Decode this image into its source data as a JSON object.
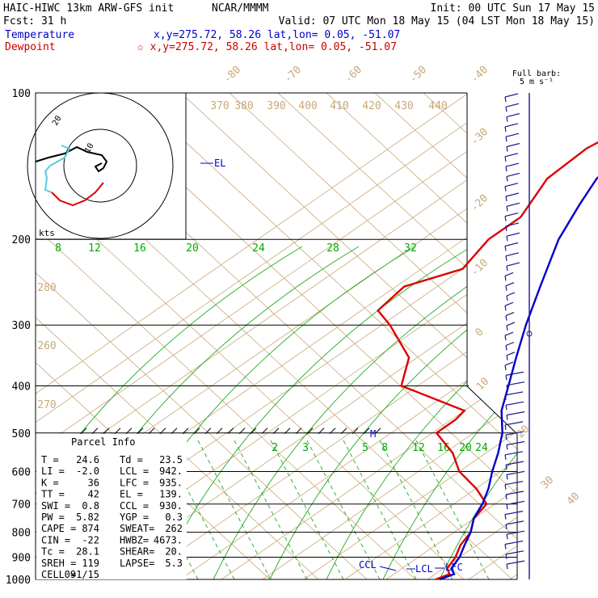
{
  "header": {
    "model": "HAIC-HIWC 13km ARW-GFS init",
    "org": "NCAR/MMMM",
    "init": "Init: 00 UTC Sun 17 May 15",
    "fcst": "Fcst:    31 h",
    "valid": "Valid: 07 UTC Mon 18 May 15 (04 LST Mon 18 May 15)",
    "temperature_label": "Temperature",
    "temperature_cursor": "x,y=275.72, 58.26    lat,lon=  0.05, -51.07",
    "dewpoint_label": "Dewpoint",
    "dewpoint_cursor": "✩ x,y=275.72, 58.26    lat,lon=  0.05, -51.07",
    "barb_legend_1": "Full barb:",
    "barb_legend_2": "5 m s⁻¹"
  },
  "chart_data": {
    "type": "skew-t log-p",
    "pressure_ticks": [
      "100",
      "200",
      "300",
      "400",
      "500",
      "600",
      "700",
      "800",
      "900",
      "1000"
    ],
    "isotherm_labels": [
      "-80",
      "-70",
      "-60",
      "-50",
      "-40",
      "-30",
      "-20",
      "-10",
      "0",
      "10",
      "20",
      "30",
      "40"
    ],
    "theta_labels": [
      "370",
      "380",
      "390",
      "400",
      "410",
      "420",
      "430",
      "440",
      "280",
      "270",
      "260"
    ],
    "mixing_ratio_labels_upper": [
      "8",
      "12",
      "16",
      "20",
      "24",
      "28",
      "32"
    ],
    "mixing_ratio_labels_lower": [
      "2",
      "3",
      "4",
      "5",
      "8",
      "12",
      "16",
      "20",
      "24"
    ],
    "temperature_profile": [
      [
        100,
        -76
      ],
      [
        110,
        -79
      ],
      [
        130,
        -81
      ],
      [
        150,
        -79
      ],
      [
        170,
        -74
      ],
      [
        200,
        -67
      ],
      [
        250,
        -55
      ],
      [
        300,
        -45
      ],
      [
        350,
        -36
      ],
      [
        400,
        -28
      ],
      [
        450,
        -21
      ],
      [
        500,
        -13
      ],
      [
        550,
        -7
      ],
      [
        600,
        -2
      ],
      [
        650,
        3
      ],
      [
        700,
        7
      ],
      [
        750,
        10
      ],
      [
        800,
        14
      ],
      [
        850,
        17
      ],
      [
        900,
        20
      ],
      [
        950,
        22
      ],
      [
        975,
        24.6
      ],
      [
        1000,
        23
      ]
    ],
    "dewpoint_profile": [
      [
        100,
        -86
      ],
      [
        130,
        -92
      ],
      [
        150,
        -91
      ],
      [
        180,
        -84
      ],
      [
        200,
        -84
      ],
      [
        230,
        -80
      ],
      [
        250,
        -88
      ],
      [
        280,
        -86
      ],
      [
        300,
        -78
      ],
      [
        350,
        -62
      ],
      [
        400,
        -54
      ],
      [
        450,
        -30
      ],
      [
        470,
        -29
      ],
      [
        500,
        -29
      ],
      [
        550,
        -18
      ],
      [
        600,
        -10
      ],
      [
        650,
        0
      ],
      [
        700,
        8
      ],
      [
        750,
        10
      ],
      [
        800,
        14
      ],
      [
        850,
        16
      ],
      [
        900,
        19
      ],
      [
        950,
        21
      ],
      [
        975,
        23.5
      ],
      [
        1000,
        22
      ]
    ],
    "annotations": [
      "EL",
      "M",
      "CCL",
      "LCL",
      "LFC"
    ],
    "hodograph": {
      "label_units": "kts",
      "ring_labels": [
        "10",
        "20"
      ]
    },
    "wind_barbs": "vertical column of wind barbs, right side",
    "parcel_info": {
      "title": "Parcel Info",
      "rows": [
        [
          "T  =",
          "24.6",
          "Td =",
          "23.5"
        ],
        [
          "LI =",
          "-2.0",
          "LCL =",
          "942."
        ],
        [
          "K  =",
          "36",
          "LFC =",
          "935."
        ],
        [
          "TT =",
          "42",
          "EL =",
          "139."
        ],
        [
          "SWI =",
          "0.8",
          "CCL =",
          "930."
        ],
        [
          "PW =",
          "5.82",
          "YGP =",
          "0.3"
        ],
        [
          "CAPE =",
          "874",
          "SWEAT=",
          "262"
        ],
        [
          "CIN =",
          "-22",
          "HWBZ=",
          "4673."
        ],
        [
          "Tc =",
          "28.1",
          "SHEAR=",
          "20."
        ],
        [
          "SREH =",
          "119",
          "LAPSE=",
          "5.3"
        ],
        [
          "CELL =",
          "091/15",
          "",
          ""
        ]
      ]
    },
    "colors": {
      "temperature": "#0000cc",
      "dewpoint": "#dd0000",
      "isotherm": "#c8a878",
      "mixing_ratio": "#00aa00",
      "grid": "#000000"
    }
  }
}
